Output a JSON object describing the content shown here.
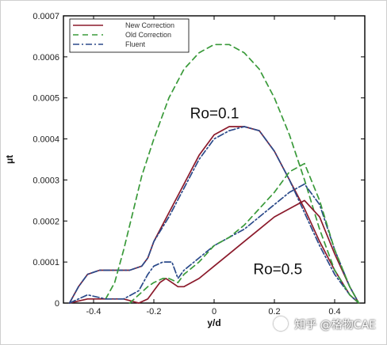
{
  "chart_data": {
    "type": "line",
    "title": "",
    "xlabel": "y/d",
    "ylabel": "μt",
    "xlim": [
      -0.5,
      0.5
    ],
    "ylim": [
      0,
      0.0007
    ],
    "x_ticks": [
      -0.4,
      -0.2,
      0,
      0.2,
      0.4
    ],
    "x_tick_labels": [
      "-0.4",
      "-0.2",
      "0",
      "0.2",
      "0.4"
    ],
    "y_ticks": [
      0,
      0.0001,
      0.0002,
      0.0003,
      0.0004,
      0.0005,
      0.0006,
      0.0007
    ],
    "y_tick_labels": [
      "0",
      "0.0001",
      "0.0002",
      "0.0003",
      "0.0004",
      "0.0005",
      "0.0006",
      "0.0007"
    ],
    "legend_position": "top-left",
    "legend": [
      {
        "label": "New Correction",
        "color": "#8b1a2b",
        "style": "solid"
      },
      {
        "label": "Old Correction",
        "color": "#3a9a3a",
        "style": "dashed"
      },
      {
        "label": "Fluent",
        "color": "#2b4a8a",
        "style": "dashdot"
      }
    ],
    "annotations": [
      {
        "text": "Ro=0.1",
        "x": -0.08,
        "y": 0.00045
      },
      {
        "text": "Ro=0.5",
        "x": 0.13,
        "y": 7e-05
      }
    ],
    "series": [
      {
        "name": "New Correction",
        "group": "Ro=0.1",
        "color": "#8b1a2b",
        "style": "solid",
        "x": [
          -0.48,
          -0.45,
          -0.42,
          -0.38,
          -0.33,
          -0.28,
          -0.24,
          -0.22,
          -0.2,
          -0.15,
          -0.1,
          -0.05,
          0,
          0.05,
          0.1,
          0.15,
          0.2,
          0.25,
          0.3,
          0.35,
          0.4,
          0.45,
          0.48
        ],
        "y": [
          0,
          4e-05,
          7e-05,
          8e-05,
          8e-05,
          8e-05,
          9e-05,
          0.00011,
          0.00015,
          0.00022,
          0.00029,
          0.00036,
          0.00041,
          0.00043,
          0.00043,
          0.00042,
          0.00037,
          0.0003,
          0.00023,
          0.00015,
          8e-05,
          2e-05,
          0
        ]
      },
      {
        "name": "Fluent",
        "group": "Ro=0.1",
        "color": "#2b4a8a",
        "style": "dashdot",
        "x": [
          -0.48,
          -0.45,
          -0.42,
          -0.38,
          -0.33,
          -0.28,
          -0.24,
          -0.22,
          -0.2,
          -0.15,
          -0.1,
          -0.05,
          0,
          0.05,
          0.1,
          0.15,
          0.2,
          0.25,
          0.3,
          0.35,
          0.4,
          0.45,
          0.48
        ],
        "y": [
          0,
          4e-05,
          7e-05,
          8e-05,
          8e-05,
          8e-05,
          9e-05,
          0.00011,
          0.00015,
          0.00021,
          0.00028,
          0.00035,
          0.0004,
          0.00042,
          0.00043,
          0.00042,
          0.00037,
          0.0003,
          0.00022,
          0.00014,
          7e-05,
          2e-05,
          0
        ]
      },
      {
        "name": "Old Correction",
        "group": "Ro=0.1",
        "color": "#3a9a3a",
        "style": "dashed",
        "x": [
          -0.36,
          -0.33,
          -0.3,
          -0.27,
          -0.24,
          -0.2,
          -0.15,
          -0.1,
          -0.05,
          0,
          0.05,
          0.1,
          0.15,
          0.2,
          0.25,
          0.3,
          0.35,
          0.4,
          0.45,
          0.48
        ],
        "y": [
          1e-05,
          5e-05,
          0.00013,
          0.00022,
          0.00031,
          0.0004,
          0.0005,
          0.00057,
          0.00061,
          0.00063,
          0.00063,
          0.00061,
          0.00057,
          0.0005,
          0.00041,
          0.0003,
          0.00018,
          8e-05,
          2e-05,
          0
        ]
      },
      {
        "name": "New Correction",
        "group": "Ro=0.5",
        "color": "#8b1a2b",
        "style": "solid",
        "x": [
          -0.48,
          -0.42,
          -0.36,
          -0.3,
          -0.25,
          -0.22,
          -0.2,
          -0.18,
          -0.16,
          -0.14,
          -0.12,
          -0.1,
          -0.05,
          0,
          0.05,
          0.1,
          0.15,
          0.2,
          0.25,
          0.3,
          0.35,
          0.4,
          0.45,
          0.48
        ],
        "y": [
          0,
          1e-05,
          1e-05,
          1e-05,
          0,
          1e-05,
          3e-05,
          5e-05,
          6e-05,
          5e-05,
          4e-05,
          4e-05,
          6e-05,
          9e-05,
          0.00012,
          0.00015,
          0.00018,
          0.00021,
          0.00023,
          0.00025,
          0.00021,
          0.00012,
          4e-05,
          0
        ]
      },
      {
        "name": "Fluent",
        "group": "Ro=0.5",
        "color": "#2b4a8a",
        "style": "dashdot",
        "x": [
          -0.48,
          -0.42,
          -0.36,
          -0.3,
          -0.25,
          -0.22,
          -0.2,
          -0.17,
          -0.14,
          -0.12,
          -0.1,
          -0.05,
          0,
          0.05,
          0.1,
          0.15,
          0.2,
          0.25,
          0.3,
          0.35,
          0.4,
          0.45,
          0.48
        ],
        "y": [
          0,
          2e-05,
          1e-05,
          1e-05,
          3e-05,
          7e-05,
          9e-05,
          0.0001,
          0.0001,
          6e-05,
          8e-05,
          0.00011,
          0.00014,
          0.00016,
          0.00018,
          0.00021,
          0.00024,
          0.00027,
          0.00029,
          0.00024,
          0.00013,
          4e-05,
          0
        ]
      },
      {
        "name": "Old Correction",
        "group": "Ro=0.5",
        "color": "#3a9a3a",
        "style": "dashed",
        "x": [
          -0.28,
          -0.25,
          -0.22,
          -0.2,
          -0.17,
          -0.15,
          -0.12,
          -0.1,
          -0.05,
          0,
          0.05,
          0.1,
          0.15,
          0.2,
          0.25,
          0.3,
          0.35,
          0.4,
          0.45,
          0.48
        ],
        "y": [
          0,
          2e-05,
          4e-05,
          5e-05,
          6e-05,
          6e-05,
          5e-05,
          7e-05,
          0.0001,
          0.00014,
          0.00016,
          0.00019,
          0.00023,
          0.00027,
          0.00032,
          0.00034,
          0.00025,
          0.00013,
          4e-05,
          0
        ]
      }
    ]
  },
  "watermark": {
    "text": "知乎 @格物CAE",
    "logo_icon": "zhihu-logo-icon"
  }
}
